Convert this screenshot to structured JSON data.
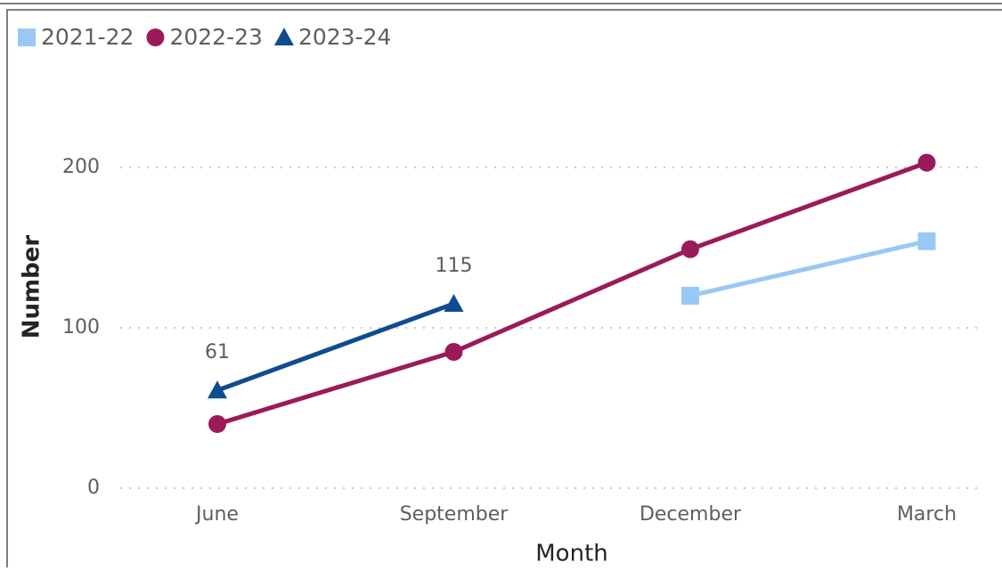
{
  "chart_data": {
    "type": "line",
    "x_label": "Month",
    "y_label": "Number",
    "categories": [
      "June",
      "September",
      "December",
      "March"
    ],
    "series": [
      {
        "name": "2021-22",
        "color": "#99c8f5",
        "marker": "square",
        "values": [
          null,
          null,
          120,
          154
        ]
      },
      {
        "name": "2022-23",
        "color": "#9b1b5a",
        "marker": "circle",
        "values": [
          40,
          85,
          149,
          203
        ]
      },
      {
        "name": "2023-24",
        "color": "#0f4c8f",
        "marker": "triangle",
        "values": [
          61,
          115,
          null,
          null
        ],
        "data_labels": true
      }
    ],
    "ylim": [
      0,
      250
    ],
    "yticks": [
      0,
      100,
      200
    ],
    "grid": true,
    "legend": "top-left"
  }
}
